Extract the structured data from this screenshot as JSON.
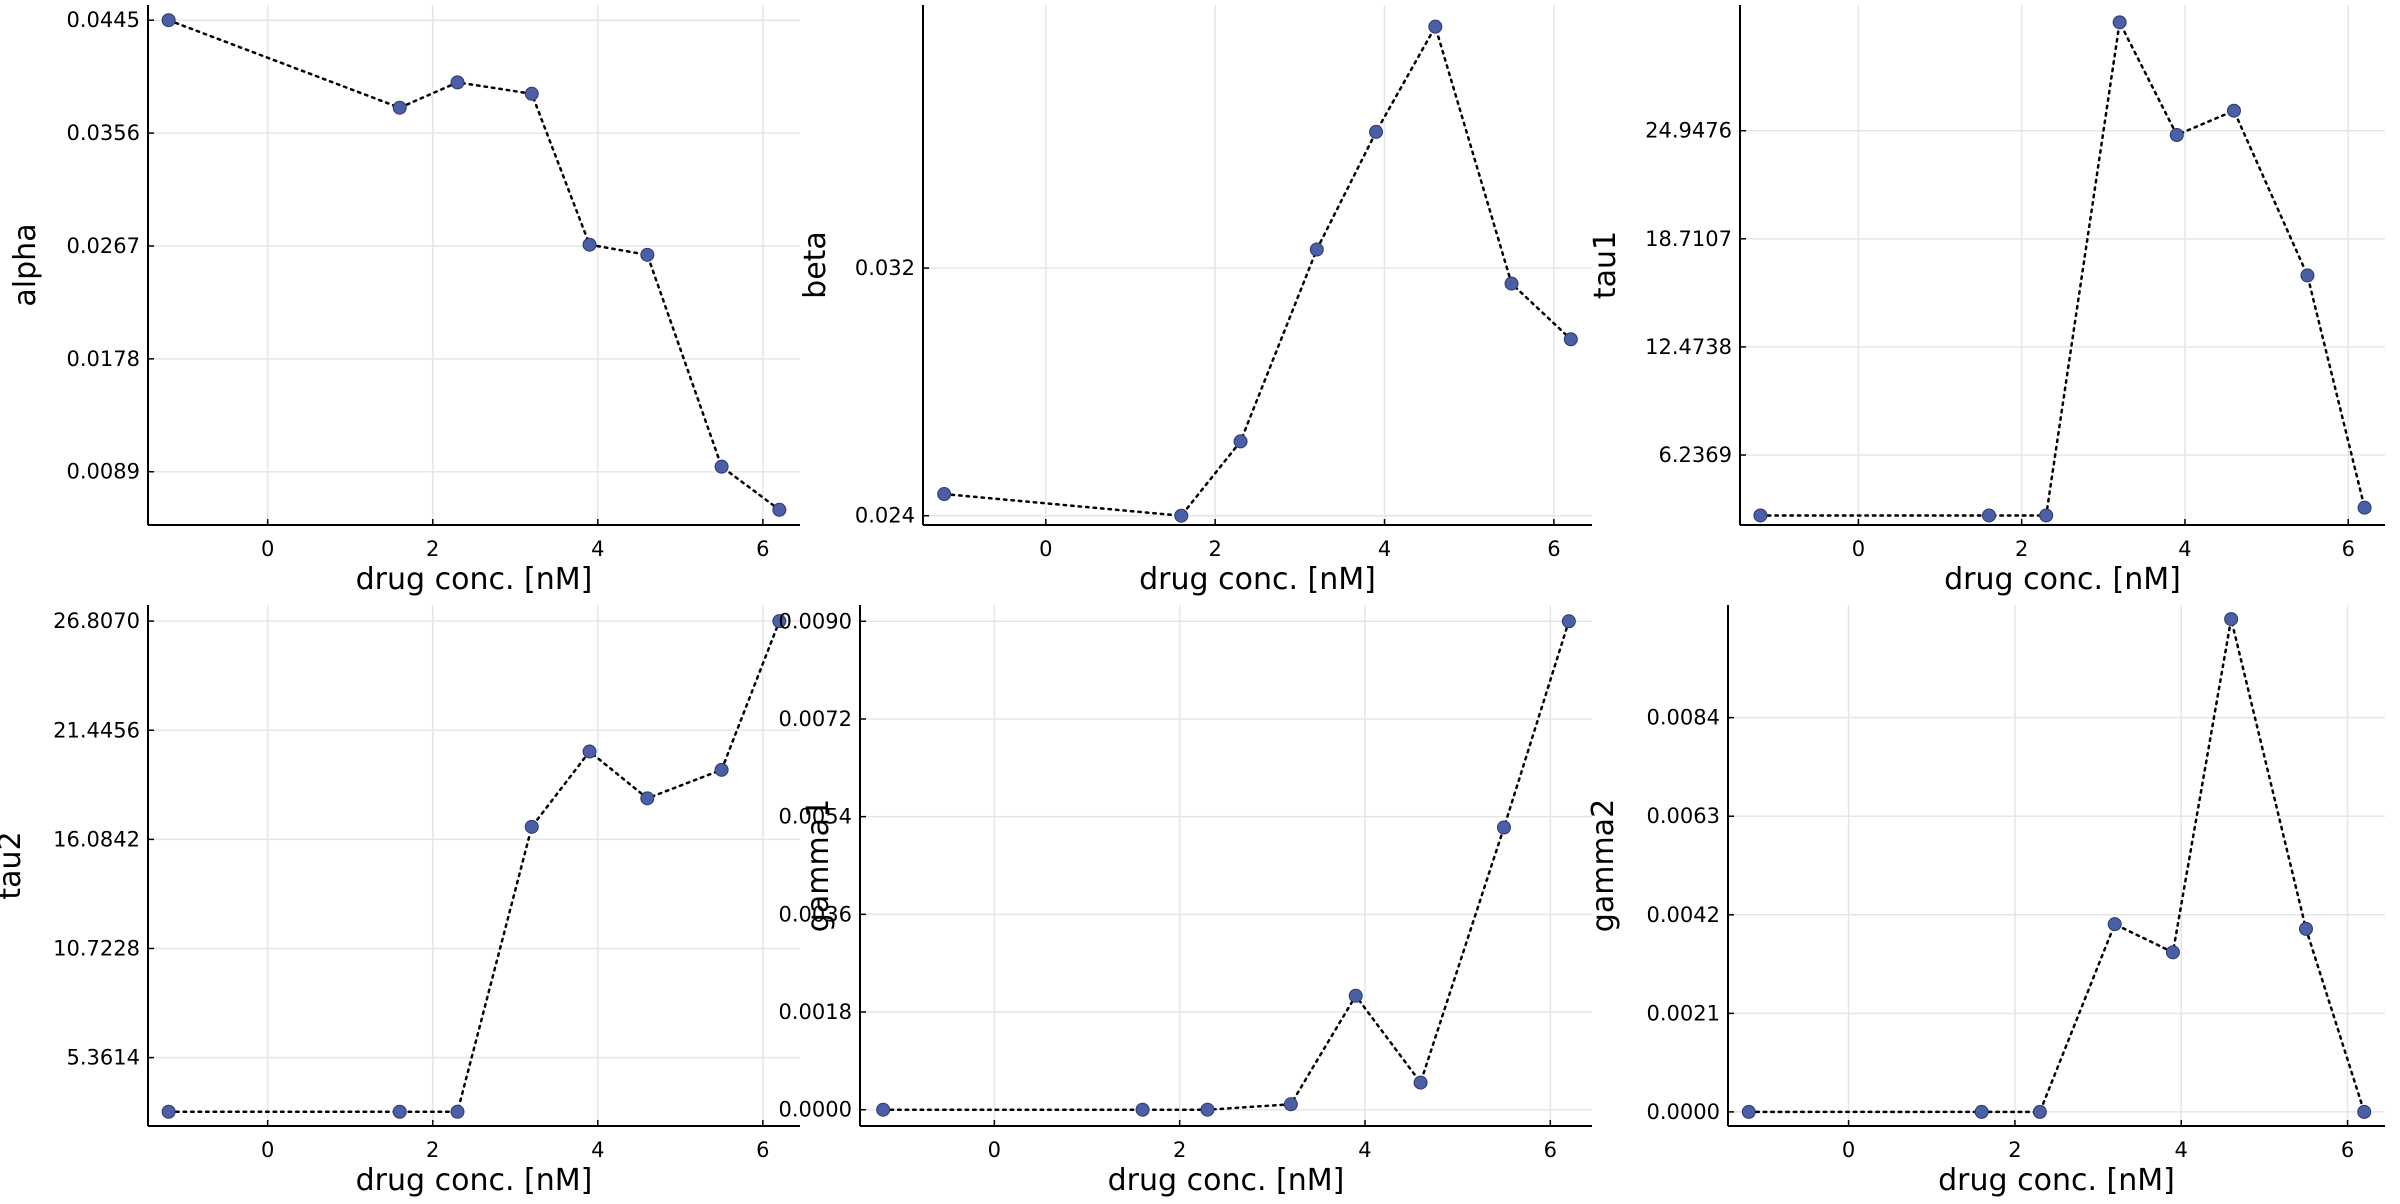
{
  "chart_data": [
    {
      "type": "line",
      "xlabel": "drug conc. [nM]",
      "ylabel": "alpha",
      "x": [
        -1.2,
        1.6,
        2.3,
        3.2,
        3.9,
        4.6,
        5.5,
        6.2
      ],
      "series": [
        {
          "values": [
            0.0445,
            0.0376,
            0.0396,
            0.0387,
            0.0268,
            0.026,
            0.0093,
            0.0059
          ]
        }
      ],
      "xlim": [
        -1.45,
        6.45
      ],
      "ylim": [
        0.0047,
        0.0457
      ],
      "xticks": [
        "0",
        "2",
        "4",
        "6"
      ],
      "xtick_values": [
        0,
        2,
        4,
        6
      ],
      "yticks": [
        "0.0089",
        "0.0178",
        "0.0267",
        "0.0356",
        "0.0445"
      ],
      "ytick_values": [
        0.0089,
        0.0178,
        0.0267,
        0.0356,
        0.0445
      ],
      "grid": true,
      "line_style": "dotted",
      "marker_color": "#4a5fa5",
      "line_color": "#000000"
    },
    {
      "type": "line",
      "xlabel": "drug conc. [nM]",
      "ylabel": "beta",
      "x": [
        -1.2,
        1.6,
        2.3,
        3.2,
        3.9,
        4.6,
        5.5,
        6.2
      ],
      "series": [
        {
          "values": [
            0.0247,
            0.024,
            0.0264,
            0.0326,
            0.0364,
            0.0398,
            0.0315,
            0.0297
          ]
        }
      ],
      "xlim": [
        -1.45,
        6.45
      ],
      "ylim": [
        0.0237,
        0.0405
      ],
      "xticks": [
        "0",
        "2",
        "4",
        "6"
      ],
      "xtick_values": [
        0,
        2,
        4,
        6
      ],
      "yticks": [
        "0.024",
        "0.032"
      ],
      "ytick_values": [
        0.024,
        0.032
      ],
      "grid": true,
      "line_style": "dotted",
      "marker_color": "#4a5fa5",
      "line_color": "#000000"
    },
    {
      "type": "line",
      "xlabel": "drug conc. [nM]",
      "ylabel": "tau1",
      "x": [
        -1.2,
        1.6,
        2.3,
        3.2,
        3.9,
        4.6,
        5.5,
        6.2
      ],
      "series": [
        {
          "values": [
            2.75,
            2.75,
            2.75,
            31.2,
            24.7,
            26.1,
            16.6,
            3.2
          ]
        }
      ],
      "xlim": [
        -1.45,
        6.45
      ],
      "ylim": [
        2.2,
        32.2
      ],
      "xticks": [
        "0",
        "2",
        "4",
        "6"
      ],
      "xtick_values": [
        0,
        2,
        4,
        6
      ],
      "yticks": [
        "6.2369",
        "12.4738",
        "18.7107",
        "24.9476"
      ],
      "ytick_values": [
        6.2369,
        12.4738,
        18.7107,
        24.9476
      ],
      "grid": true,
      "line_style": "dotted",
      "marker_color": "#4a5fa5",
      "line_color": "#000000"
    },
    {
      "type": "line",
      "xlabel": "drug conc. [nM]",
      "ylabel": "tau2",
      "x": [
        -1.2,
        1.6,
        2.3,
        3.2,
        3.9,
        4.6,
        5.5,
        6.2
      ],
      "series": [
        {
          "values": [
            2.7,
            2.7,
            2.7,
            16.7,
            20.4,
            18.1,
            19.5,
            26.807
          ]
        }
      ],
      "xlim": [
        -1.45,
        6.45
      ],
      "ylim": [
        2.0,
        27.6
      ],
      "xticks": [
        "0",
        "2",
        "4",
        "6"
      ],
      "xtick_values": [
        0,
        2,
        4,
        6
      ],
      "yticks": [
        "5.3614",
        "10.7228",
        "16.0842",
        "21.4456",
        "26.8070"
      ],
      "ytick_values": [
        5.3614,
        10.7228,
        16.0842,
        21.4456,
        26.807
      ],
      "grid": true,
      "line_style": "dotted",
      "marker_color": "#4a5fa5",
      "line_color": "#000000"
    },
    {
      "type": "line",
      "xlabel": "drug conc. [nM]",
      "ylabel": "gamma1",
      "x": [
        -1.2,
        1.6,
        2.3,
        3.2,
        3.9,
        4.6,
        5.5,
        6.2
      ],
      "series": [
        {
          "values": [
            0.0,
            0.0,
            0.0,
            0.0001,
            0.0021,
            0.0005,
            0.0052,
            0.009
          ]
        }
      ],
      "xlim": [
        -1.45,
        6.45
      ],
      "ylim": [
        -0.0003,
        0.0093
      ],
      "xticks": [
        "0",
        "2",
        "4",
        "6"
      ],
      "xtick_values": [
        0,
        2,
        4,
        6
      ],
      "yticks": [
        "0.0000",
        "0.0018",
        "0.0036",
        "0.0054",
        "0.0072",
        "0.0090"
      ],
      "ytick_values": [
        0.0,
        0.0018,
        0.0036,
        0.0054,
        0.0072,
        0.009
      ],
      "grid": true,
      "line_style": "dotted",
      "marker_color": "#4a5fa5",
      "line_color": "#000000"
    },
    {
      "type": "line",
      "xlabel": "drug conc. [nM]",
      "ylabel": "gamma2",
      "x": [
        -1.2,
        1.6,
        2.3,
        3.2,
        3.9,
        4.6,
        5.5,
        6.2
      ],
      "series": [
        {
          "values": [
            0.0,
            0.0,
            0.0,
            0.004,
            0.0034,
            0.0105,
            0.0039,
            0.0
          ]
        }
      ],
      "xlim": [
        -1.45,
        6.45
      ],
      "ylim": [
        -0.0003,
        0.0108
      ],
      "xticks": [
        "0",
        "2",
        "4",
        "6"
      ],
      "xtick_values": [
        0,
        2,
        4,
        6
      ],
      "yticks": [
        "0.0000",
        "0.0021",
        "0.0042",
        "0.0063",
        "0.0084"
      ],
      "ytick_values": [
        0.0,
        0.0021,
        0.0042,
        0.0063,
        0.0084
      ],
      "grid": true,
      "line_style": "dotted",
      "marker_color": "#4a5fa5",
      "line_color": "#000000"
    }
  ]
}
